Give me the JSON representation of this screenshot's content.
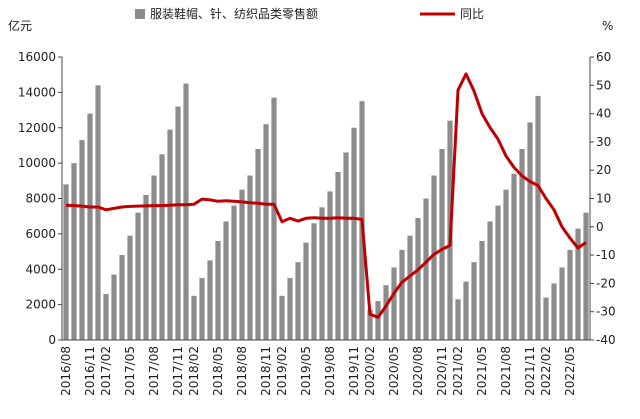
{
  "chart_data": {
    "type": "bar_line",
    "left_axis_unit": "亿元",
    "right_axis_unit": "%",
    "categories": [
      "2016/08",
      null,
      null,
      "2016/11",
      null,
      "2017/02",
      null,
      null,
      "2017/05",
      null,
      null,
      "2017/08",
      null,
      null,
      "2017/11",
      null,
      "2018/02",
      null,
      null,
      "2018/05",
      null,
      null,
      "2018/08",
      null,
      null,
      "2018/11",
      null,
      "2019/02",
      null,
      null,
      "2019/05",
      null,
      null,
      "2019/08",
      null,
      null,
      "2019/11",
      null,
      "2020/02",
      null,
      null,
      "2020/05",
      null,
      null,
      "2020/08",
      null,
      null,
      "2020/11",
      null,
      "2021/02",
      null,
      null,
      "2021/05",
      null,
      null,
      "2021/08",
      null,
      null,
      "2021/11",
      null,
      "2022/02",
      null,
      null,
      "2022/05",
      null,
      null
    ],
    "series": [
      {
        "name": "服装鞋帽、针、纺织品类零售额",
        "color": "#8c8c8c",
        "axis": "y",
        "values": [
          8800,
          10000,
          11300,
          12800,
          14400,
          2600,
          3700,
          4800,
          5900,
          7200,
          8200,
          9300,
          10500,
          11900,
          13200,
          14500,
          2500,
          3500,
          4500,
          5600,
          6700,
          7600,
          8500,
          9300,
          10800,
          12200,
          13700,
          2500,
          3500,
          4400,
          5500,
          6600,
          7500,
          8400,
          9500,
          10600,
          12000,
          13500,
          1700,
          2200,
          3100,
          4100,
          5100,
          5900,
          6900,
          8000,
          9300,
          10800,
          12400,
          2300,
          3300,
          4400,
          5600,
          6700,
          7600,
          8500,
          9400,
          10800,
          12300,
          13800,
          2400,
          3200,
          4100,
          5100,
          6300,
          7200
        ]
      },
      {
        "name": "同比",
        "color": "#c00000",
        "axis": "y2",
        "values": [
          7.6,
          7.5,
          7.3,
          7.0,
          7.0,
          6.0,
          6.5,
          7.0,
          7.2,
          7.3,
          7.4,
          7.5,
          7.5,
          7.6,
          7.8,
          7.8,
          8.0,
          9.8,
          9.5,
          9.0,
          9.2,
          9.0,
          8.8,
          8.5,
          8.3,
          8.0,
          8.0,
          1.8,
          3.0,
          2.0,
          3.0,
          3.2,
          3.0,
          3.0,
          3.2,
          3.0,
          3.0,
          2.6,
          -30.9,
          -32.0,
          -28,
          -23.5,
          -19.6,
          -17.4,
          -15.2,
          -12.5,
          -9.7,
          -8.0,
          -6.6,
          48.3,
          54.0,
          48,
          40,
          35.1,
          31,
          25,
          21,
          18,
          16,
          14.6,
          10.0,
          6,
          0,
          -4,
          -7.5,
          -5.5
        ]
      }
    ],
    "ylim": [
      0,
      16000
    ],
    "yticks": [
      0,
      2000,
      4000,
      6000,
      8000,
      10000,
      12000,
      14000,
      16000
    ],
    "y2lim": [
      -40,
      60
    ],
    "y2ticks": [
      -40,
      -30,
      -20,
      -10,
      0,
      10,
      20,
      30,
      40,
      50,
      60
    ]
  }
}
